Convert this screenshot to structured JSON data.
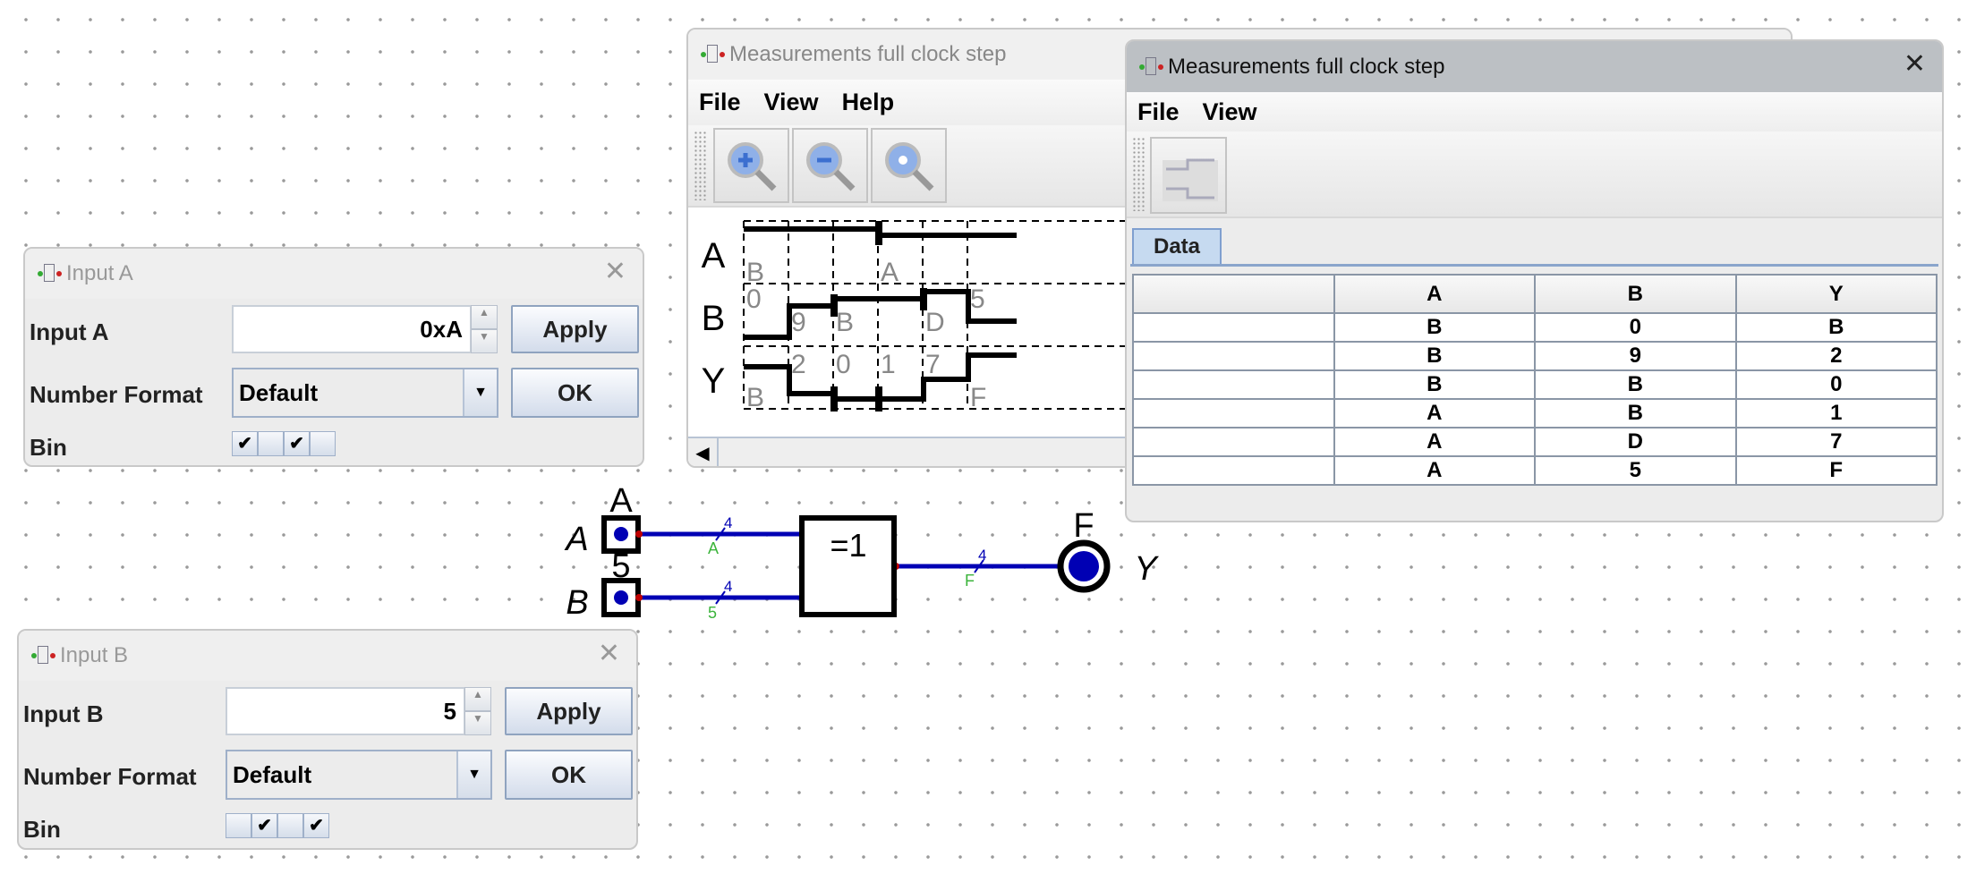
{
  "measure_back": {
    "title": "Measurements full clock step",
    "menu": [
      "File",
      "View",
      "Help"
    ],
    "toolbar": [
      "zoom-in-icon",
      "zoom-out-icon",
      "zoom-fit-icon"
    ],
    "signals": [
      {
        "name": "A",
        "values": [
          "B",
          "A"
        ]
      },
      {
        "name": "B",
        "values": [
          "0",
          "9",
          "B",
          "D",
          "5"
        ]
      },
      {
        "name": "Y",
        "values": [
          "B",
          "2",
          "0",
          "1",
          "7",
          "F"
        ]
      }
    ]
  },
  "measure_front": {
    "title": "Measurements full clock step",
    "menu": [
      "File",
      "View"
    ],
    "tab": "Data",
    "columns": [
      "",
      "A",
      "B",
      "Y"
    ],
    "rows": [
      [
        "",
        "B",
        "0",
        "B"
      ],
      [
        "",
        "B",
        "9",
        "2"
      ],
      [
        "",
        "B",
        "B",
        "0"
      ],
      [
        "",
        "A",
        "B",
        "1"
      ],
      [
        "",
        "A",
        "D",
        "7"
      ],
      [
        "",
        "A",
        "5",
        "F"
      ]
    ]
  },
  "input_a": {
    "title": "Input A",
    "label": "Input A",
    "value": "0xA",
    "apply": "Apply",
    "format_label": "Number Format",
    "format": "Default",
    "ok": "OK",
    "bin_label": "Bin",
    "bits": [
      true,
      false,
      true,
      false
    ]
  },
  "input_b": {
    "title": "Input B",
    "label": "Input B",
    "value": "5",
    "apply": "Apply",
    "format_label": "Number Format",
    "format": "Default",
    "ok": "OK",
    "bin_label": "Bin",
    "bits": [
      false,
      true,
      false,
      true
    ]
  },
  "circuit": {
    "in_a_label": "A",
    "in_a_value": "A",
    "in_b_label": "B",
    "in_b_value": "5",
    "gate": "=1",
    "bus_width": "4",
    "wire_a_value": "A",
    "wire_b_value": "5",
    "wire_out_value": "F",
    "out_label": "Y",
    "out_value": "F",
    "colors": {
      "wire": "#0000b4",
      "value": "#3cb43c",
      "pin": "#c00000"
    }
  }
}
